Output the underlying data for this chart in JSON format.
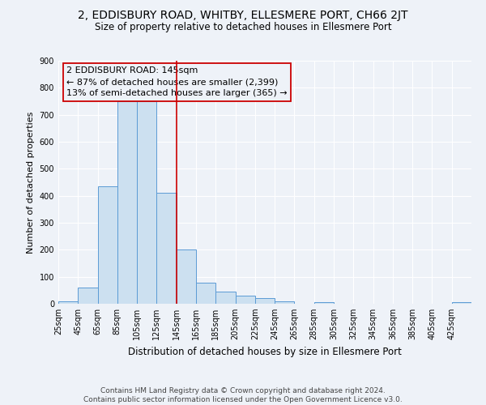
{
  "title": "2, EDDISBURY ROAD, WHITBY, ELLESMERE PORT, CH66 2JT",
  "subtitle": "Size of property relative to detached houses in Ellesmere Port",
  "xlabel": "Distribution of detached houses by size in Ellesmere Port",
  "ylabel": "Number of detached properties",
  "bins_start": [
    25,
    45,
    65,
    85,
    105,
    125,
    145,
    165,
    185,
    205,
    225,
    245,
    265,
    285,
    305,
    325,
    345,
    365,
    385,
    405,
    425
  ],
  "bar_values": [
    10,
    60,
    435,
    750,
    750,
    410,
    200,
    78,
    45,
    30,
    22,
    8,
    0,
    5,
    0,
    0,
    0,
    0,
    0,
    0,
    5
  ],
  "bin_width": 20,
  "bar_color": "#cce0f0",
  "bar_edge_color": "#5b9bd5",
  "property_size": 145,
  "vline_color": "#cc0000",
  "annotation_line1": "2 EDDISBURY ROAD: 145sqm",
  "annotation_line2": "← 87% of detached houses are smaller (2,399)",
  "annotation_line3": "13% of semi-detached houses are larger (365) →",
  "annotation_box_edge_color": "#cc0000",
  "ylim": [
    0,
    900
  ],
  "yticks": [
    0,
    100,
    200,
    300,
    400,
    500,
    600,
    700,
    800,
    900
  ],
  "tick_labels": [
    "25sqm",
    "45sqm",
    "65sqm",
    "85sqm",
    "105sqm",
    "125sqm",
    "145sqm",
    "165sqm",
    "185sqm",
    "205sqm",
    "225sqm",
    "245sqm",
    "265sqm",
    "285sqm",
    "305sqm",
    "325sqm",
    "345sqm",
    "365sqm",
    "385sqm",
    "405sqm",
    "425sqm"
  ],
  "footer_text": "Contains HM Land Registry data © Crown copyright and database right 2024.\nContains public sector information licensed under the Open Government Licence v3.0.",
  "background_color": "#eef2f8",
  "grid_color": "#ffffff",
  "title_fontsize": 10,
  "subtitle_fontsize": 8.5,
  "xlabel_fontsize": 8.5,
  "ylabel_fontsize": 8,
  "tick_fontsize": 7,
  "annotation_fontsize": 8,
  "footer_fontsize": 6.5
}
